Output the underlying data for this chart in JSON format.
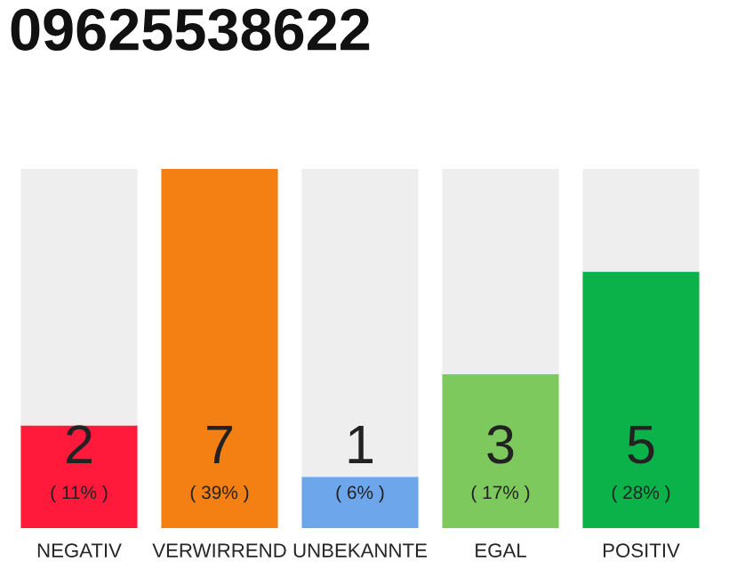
{
  "chart_data": {
    "type": "bar",
    "title": "09625538622",
    "stacked": true,
    "categories": [
      "NEGATIV",
      "VERWIRREND",
      "UNBEKANNTE",
      "EGAL",
      "POSITIV"
    ],
    "series": [
      {
        "colors": [
          "#ff1a3c",
          "#f47f12",
          "#6ea6ec",
          "#7dc95e",
          "#0bb24a"
        ],
        "values": [
          2,
          7,
          1,
          3,
          5
        ],
        "value_labels": [
          "2\n( 11% )",
          "7\n( 39% )",
          "1\n( 6% )",
          "3\n( 17% )",
          "5\n( 28% )"
        ]
      },
      {
        "color": "#eeeeee",
        "values": [
          5,
          0,
          6,
          4,
          2
        ]
      }
    ],
    "grid": false,
    "legend": false,
    "tick_labels": "x"
  }
}
